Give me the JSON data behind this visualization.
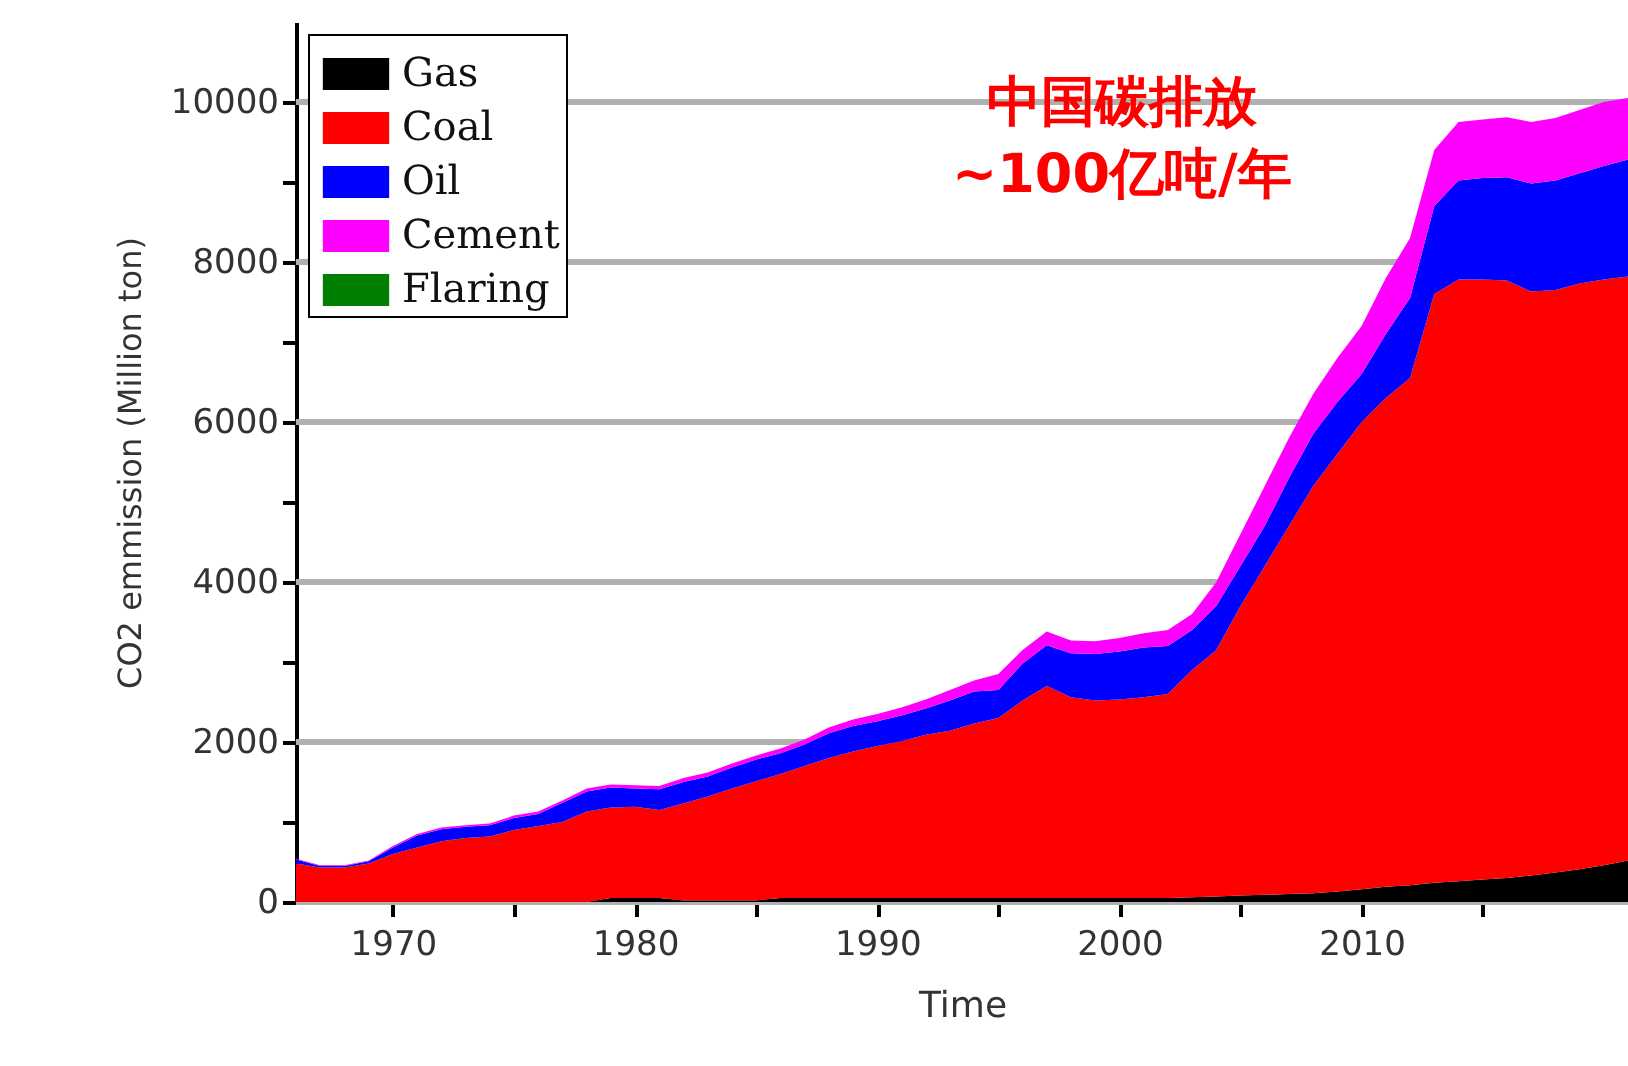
{
  "chart_data": {
    "type": "area",
    "stacked": true,
    "xlabel": "Time",
    "ylabel": "CO2 emmission (Million ton)",
    "annotations": [
      "中国碳排放",
      "~100亿吨/年"
    ],
    "x": [
      1966,
      1967,
      1968,
      1969,
      1970,
      1971,
      1972,
      1973,
      1974,
      1975,
      1976,
      1977,
      1978,
      1979,
      1980,
      1981,
      1982,
      1983,
      1984,
      1985,
      1986,
      1987,
      1988,
      1989,
      1990,
      1991,
      1992,
      1993,
      1994,
      1995,
      1996,
      1997,
      1998,
      1999,
      2000,
      2001,
      2002,
      2003,
      2004,
      2005,
      2006,
      2007,
      2008,
      2009,
      2010,
      2011,
      2012,
      2013,
      2014,
      2015,
      2016,
      2017,
      2018,
      2019,
      2020,
      2021
    ],
    "series": [
      {
        "name": "Gas",
        "color": "#000000",
        "values": [
          0,
          0,
          0,
          0,
          0,
          0,
          0,
          0,
          0,
          0,
          0,
          0,
          0,
          50,
          50,
          50,
          20,
          20,
          20,
          20,
          50,
          50,
          50,
          50,
          50,
          50,
          50,
          50,
          50,
          50,
          50,
          50,
          50,
          50,
          50,
          50,
          50,
          60,
          70,
          80,
          90,
          100,
          110,
          130,
          160,
          190,
          210,
          240,
          260,
          280,
          300,
          330,
          370,
          410,
          460,
          520
        ]
      },
      {
        "name": "Coal",
        "color": "#ff0000",
        "values": [
          480,
          430,
          430,
          480,
          600,
          680,
          760,
          800,
          820,
          900,
          950,
          1000,
          1130,
          1130,
          1140,
          1100,
          1210,
          1300,
          1400,
          1490,
          1550,
          1650,
          1750,
          1830,
          1900,
          1960,
          2040,
          2090,
          2180,
          2250,
          2470,
          2650,
          2510,
          2470,
          2480,
          2510,
          2550,
          2840,
          3080,
          3620,
          4110,
          4600,
          5090,
          5470,
          5840,
          6110,
          6340,
          7360,
          7520,
          7500,
          7470,
          7300,
          7280,
          7320,
          7320,
          7300
        ]
      },
      {
        "name": "Oil",
        "color": "#0000ff",
        "values": [
          50,
          20,
          20,
          30,
          80,
          150,
          150,
          140,
          140,
          150,
          150,
          240,
          250,
          250,
          230,
          260,
          270,
          250,
          260,
          270,
          260,
          270,
          310,
          320,
          310,
          320,
          330,
          380,
          400,
          350,
          460,
          510,
          550,
          580,
          600,
          620,
          600,
          500,
          550,
          500,
          500,
          600,
          650,
          650,
          600,
          800,
          1000,
          1100,
          1240,
          1270,
          1290,
          1350,
          1370,
          1380,
          1420,
          1460
        ]
      },
      {
        "name": "Cement",
        "color": "#ff00ff",
        "values": [
          10,
          10,
          10,
          10,
          20,
          20,
          20,
          20,
          20,
          30,
          30,
          30,
          40,
          40,
          40,
          40,
          50,
          50,
          50,
          50,
          60,
          60,
          70,
          80,
          90,
          100,
          110,
          130,
          140,
          200,
          170,
          170,
          160,
          160,
          170,
          180,
          200,
          200,
          300,
          400,
          500,
          500,
          500,
          550,
          600,
          700,
          750,
          700,
          730,
          730,
          750,
          770,
          780,
          790,
          800,
          770
        ]
      },
      {
        "name": "Flaring",
        "color": "#008000",
        "values": [
          null,
          null,
          null,
          null,
          null,
          null,
          null,
          null,
          null,
          null,
          null,
          null,
          null,
          null,
          null,
          null,
          null,
          null,
          null,
          null,
          null,
          null,
          null,
          null,
          null,
          null,
          null,
          null,
          null,
          null,
          null,
          null,
          null,
          null,
          null,
          null,
          null,
          null,
          null,
          null,
          null,
          null,
          null,
          null,
          null,
          null,
          null,
          null,
          null,
          null,
          null,
          null,
          null,
          null,
          null,
          null
        ]
      }
    ],
    "xlim": [
      1966,
      2021
    ],
    "xticks": [
      1970,
      {
        "value": 1975,
        "label": null
      },
      1980,
      {
        "value": 1985,
        "label": null
      },
      1990,
      {
        "value": 1995,
        "label": null
      },
      2000,
      {
        "value": 2005,
        "label": null
      },
      2010,
      {
        "value": 2015,
        "label": null
      }
    ],
    "ylim": [
      0,
      11000
    ],
    "yticks": [
      0,
      {
        "value": 1000,
        "label": null
      },
      2000,
      {
        "value": 3000,
        "label": null
      },
      4000,
      {
        "value": 5000,
        "label": null
      },
      6000,
      {
        "value": 7000,
        "label": null
      },
      8000,
      {
        "value": 9000,
        "label": null
      },
      10000
    ],
    "grid": "y",
    "legend": "top left",
    "marker": "none"
  }
}
